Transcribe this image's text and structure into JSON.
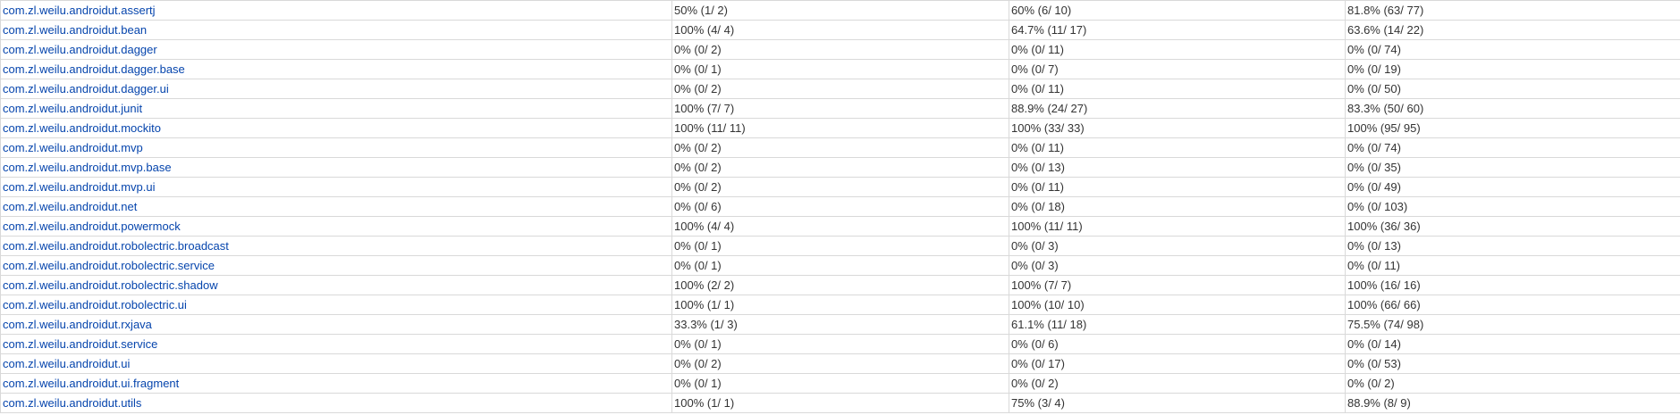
{
  "packages": [
    {
      "name": "com.zl.weilu.androidut.assertj",
      "class": "50% (1/ 2)",
      "method": "60% (6/ 10)",
      "line": "81.8% (63/ 77)"
    },
    {
      "name": "com.zl.weilu.androidut.bean",
      "class": "100% (4/ 4)",
      "method": "64.7% (11/ 17)",
      "line": "63.6% (14/ 22)"
    },
    {
      "name": "com.zl.weilu.androidut.dagger",
      "class": "0% (0/ 2)",
      "method": "0% (0/ 11)",
      "line": "0% (0/ 74)"
    },
    {
      "name": "com.zl.weilu.androidut.dagger.base",
      "class": "0% (0/ 1)",
      "method": "0% (0/ 7)",
      "line": "0% (0/ 19)"
    },
    {
      "name": "com.zl.weilu.androidut.dagger.ui",
      "class": "0% (0/ 2)",
      "method": "0% (0/ 11)",
      "line": "0% (0/ 50)"
    },
    {
      "name": "com.zl.weilu.androidut.junit",
      "class": "100% (7/ 7)",
      "method": "88.9% (24/ 27)",
      "line": "83.3% (50/ 60)"
    },
    {
      "name": "com.zl.weilu.androidut.mockito",
      "class": "100% (11/ 11)",
      "method": "100% (33/ 33)",
      "line": "100% (95/ 95)"
    },
    {
      "name": "com.zl.weilu.androidut.mvp",
      "class": "0% (0/ 2)",
      "method": "0% (0/ 11)",
      "line": "0% (0/ 74)"
    },
    {
      "name": "com.zl.weilu.androidut.mvp.base",
      "class": "0% (0/ 2)",
      "method": "0% (0/ 13)",
      "line": "0% (0/ 35)"
    },
    {
      "name": "com.zl.weilu.androidut.mvp.ui",
      "class": "0% (0/ 2)",
      "method": "0% (0/ 11)",
      "line": "0% (0/ 49)"
    },
    {
      "name": "com.zl.weilu.androidut.net",
      "class": "0% (0/ 6)",
      "method": "0% (0/ 18)",
      "line": "0% (0/ 103)"
    },
    {
      "name": "com.zl.weilu.androidut.powermock",
      "class": "100% (4/ 4)",
      "method": "100% (11/ 11)",
      "line": "100% (36/ 36)"
    },
    {
      "name": "com.zl.weilu.androidut.robolectric.broadcast",
      "class": "0% (0/ 1)",
      "method": "0% (0/ 3)",
      "line": "0% (0/ 13)"
    },
    {
      "name": "com.zl.weilu.androidut.robolectric.service",
      "class": "0% (0/ 1)",
      "method": "0% (0/ 3)",
      "line": "0% (0/ 11)"
    },
    {
      "name": "com.zl.weilu.androidut.robolectric.shadow",
      "class": "100% (2/ 2)",
      "method": "100% (7/ 7)",
      "line": "100% (16/ 16)"
    },
    {
      "name": "com.zl.weilu.androidut.robolectric.ui",
      "class": "100% (1/ 1)",
      "method": "100% (10/ 10)",
      "line": "100% (66/ 66)"
    },
    {
      "name": "com.zl.weilu.androidut.rxjava",
      "class": "33.3% (1/ 3)",
      "method": "61.1% (11/ 18)",
      "line": "75.5% (74/ 98)"
    },
    {
      "name": "com.zl.weilu.androidut.service",
      "class": "0% (0/ 1)",
      "method": "0% (0/ 6)",
      "line": "0% (0/ 14)"
    },
    {
      "name": "com.zl.weilu.androidut.ui",
      "class": "0% (0/ 2)",
      "method": "0% (0/ 17)",
      "line": "0% (0/ 53)"
    },
    {
      "name": "com.zl.weilu.androidut.ui.fragment",
      "class": "0% (0/ 1)",
      "method": "0% (0/ 2)",
      "line": "0% (0/ 2)"
    },
    {
      "name": "com.zl.weilu.androidut.utils",
      "class": "100% (1/ 1)",
      "method": "75% (3/ 4)",
      "line": "88.9% (8/ 9)"
    }
  ]
}
